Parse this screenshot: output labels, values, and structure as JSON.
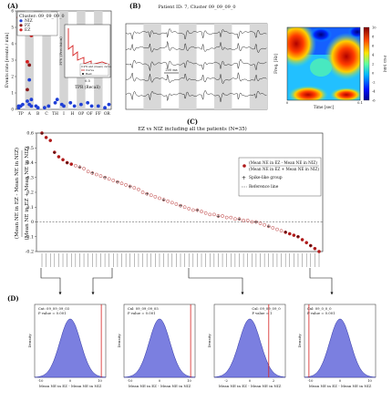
{
  "panels": {
    "a": {
      "label": "(A)",
      "legend_title": "Cluster: 09_09_09_0",
      "legend": [
        {
          "name": "NIZ",
          "color": "#1f3fd6"
        },
        {
          "name": "PZ",
          "color": "#8b1a1a"
        },
        {
          "name": "EZ",
          "color": "#d62020"
        }
      ],
      "ylabel": "Events rate [events / min]",
      "inset_ylabel": "PPV (Precision)",
      "inset_xlabel": "TPR (Recall)",
      "inset_legend": [
        "Curve",
        "Best"
      ],
      "inset_note": "0.9% and (mean) curve",
      "inset_tick": "0.5",
      "x_labels": [
        "TP",
        "A",
        "B",
        "C",
        "TH",
        "I",
        "H",
        "OP",
        "OF",
        "FF",
        "OR"
      ],
      "y_ticks": [
        "6",
        "5",
        "4",
        "3",
        "2",
        "1",
        "0"
      ]
    },
    "b": {
      "label": "(B)",
      "title": "Patient ID: 7, Cluster 09_09_09_0",
      "scale_bar": "200 ms",
      "spec_ylabel": "Freq. [Hz]",
      "spec_xlabel": "Time [sec]",
      "spec_ticks_x": [
        "0",
        "0.1"
      ],
      "colorbar_ticks": [
        "10",
        "8",
        "6",
        "4",
        "2",
        "0",
        "-2",
        "-4",
        "-6"
      ],
      "colorbar_label": "PSD [dB]"
    },
    "c": {
      "label": "(C)",
      "title": "EZ vs NIZ including all the patients (N=35)",
      "ylabel_line1": "(Mean NE in EZ - Mean NE in NIZ)",
      "ylabel_line2": "(Mean NE in EZ + Mean NE in NIZ)",
      "legend": [
        "(Mean NE in EZ - Mean NE in NIZ)",
        "(Mean NE in EZ + Mean NE in NIZ)",
        "Spike-like group",
        "Reference line"
      ],
      "y_ticks": [
        "0.6",
        "0.5",
        "0.4",
        "0.3",
        "0.2",
        "0.1",
        "0",
        "-0.1",
        "-0.2"
      ]
    },
    "d": {
      "label": "(D)",
      "ylabel": "Density",
      "xlabel": "Mean NE in EZ - Mean NE in NIZ",
      "subplots": [
        {
          "cluster": "Cxt: 09_09_09_03",
          "pvalue": "P value = 0.001",
          "ticks": [
            "-10",
            "0",
            "10"
          ]
        },
        {
          "cluster": "Cxl: 09_09_09_05",
          "pvalue": "P value = 0.001",
          "ticks": [
            "-10",
            "0",
            "10"
          ]
        },
        {
          "cluster": "Cxl: 09_09_09_0",
          "pvalue": "P value = 1",
          "ticks": [
            "-2",
            "0",
            "2"
          ]
        },
        {
          "cluster": "Cxl: 09_0_0_0",
          "pvalue": "P value = 0.001",
          "ticks": [
            "-10",
            "0",
            "10"
          ]
        }
      ]
    }
  },
  "chart_data": [
    {
      "type": "scatter",
      "title": "",
      "ylabel": "Events rate [events / min]",
      "categories": [
        "TP",
        "A",
        "B",
        "C",
        "TH",
        "I",
        "H",
        "OP",
        "OF",
        "FF",
        "OR"
      ],
      "ylim": [
        0,
        6
      ],
      "series": [
        {
          "name": "NIZ",
          "points": [
            [
              0,
              0.1
            ],
            [
              0,
              0.2
            ],
            [
              0,
              0.3
            ],
            [
              0,
              0.2
            ],
            [
              1,
              1.8
            ],
            [
              1,
              0.6
            ],
            [
              1,
              0.5
            ],
            [
              1,
              0.3
            ],
            [
              1,
              0.2
            ],
            [
              2,
              0.2
            ],
            [
              2,
              0.1
            ],
            [
              3,
              0.2
            ],
            [
              3,
              0.1
            ],
            [
              4,
              0.4
            ],
            [
              4,
              0.6
            ],
            [
              5,
              0.3
            ],
            [
              5,
              0.2
            ],
            [
              6,
              0.2
            ],
            [
              6,
              0.4
            ],
            [
              7,
              0.3
            ],
            [
              8,
              0.2
            ],
            [
              8,
              0.4
            ],
            [
              9,
              0.2
            ],
            [
              10,
              0.3
            ],
            [
              10,
              0.1
            ]
          ]
        },
        {
          "name": "PZ",
          "points": [
            [
              1,
              1.2
            ],
            [
              1,
              2.7
            ]
          ]
        },
        {
          "name": "EZ",
          "points": [
            [
              0,
              5.6
            ],
            [
              0,
              4.8
            ],
            [
              1,
              4.5
            ],
            [
              1,
              2.9
            ]
          ]
        }
      ]
    },
    {
      "type": "scatter",
      "title": "EZ vs NIZ including all the patients (N=35)",
      "ylabel": "(Mean NE in EZ - Mean NE in NIZ) / (Mean NE in EZ + Mean NE in NIZ)",
      "ylim": [
        -0.2,
        0.6
      ],
      "reference_line": 0,
      "series": [
        {
          "name": "(Mean NE in EZ - Mean NE in NIZ) / (Mean NE in EZ + Mean NE in NIZ)",
          "values": [
            0.6,
            0.57,
            0.55,
            0.47,
            0.44,
            0.42,
            0.4,
            0.39,
            0.38,
            0.37,
            0.36,
            0.34,
            0.33,
            0.32,
            0.31,
            0.3,
            0.29,
            0.28,
            0.27,
            0.26,
            0.25,
            0.24,
            0.23,
            0.22,
            0.2,
            0.19,
            0.18,
            0.17,
            0.16,
            0.15,
            0.14,
            0.13,
            0.12,
            0.11,
            0.1,
            0.09,
            0.08,
            0.08,
            0.07,
            0.06,
            0.05,
            0.05,
            0.04,
            0.04,
            0.03,
            0.03,
            0.02,
            0.02,
            0.01,
            0.01,
            0.0,
            0.0,
            -0.01,
            -0.02,
            -0.03,
            -0.04,
            -0.05,
            -0.06,
            -0.07,
            -0.08,
            -0.09,
            -0.1,
            -0.12,
            -0.14,
            -0.16,
            -0.18,
            -0.2
          ]
        },
        {
          "name": "Spike-like group",
          "indices": [
            0,
            3,
            6,
            9,
            12,
            15,
            18,
            21,
            25,
            29,
            33,
            37,
            42,
            47,
            51,
            54,
            58,
            61,
            64
          ]
        }
      ]
    },
    {
      "type": "area",
      "ylabel": "Density",
      "xlabel": "Mean NE in EZ - Mean NE in NIZ",
      "series": [
        {
          "name": "Cxt: 09_09_09_03",
          "mean": 0,
          "sd": 3.5,
          "observed": 10.5,
          "xlim": [
            -12,
            12
          ]
        },
        {
          "name": "Cxl: 09_09_09_05",
          "mean": 0,
          "sd": 3.5,
          "observed": 10.5,
          "xlim": [
            -12,
            12
          ]
        },
        {
          "name": "Cxl: 09_09_09_0",
          "mean": 0,
          "sd": 0.9,
          "observed": 1.6,
          "xlim": [
            -3,
            3
          ]
        },
        {
          "name": "Cxl: 09_0_0_0",
          "mean": 0,
          "sd": 3.5,
          "observed": -10.5,
          "xlim": [
            -12,
            12
          ]
        }
      ]
    }
  ]
}
